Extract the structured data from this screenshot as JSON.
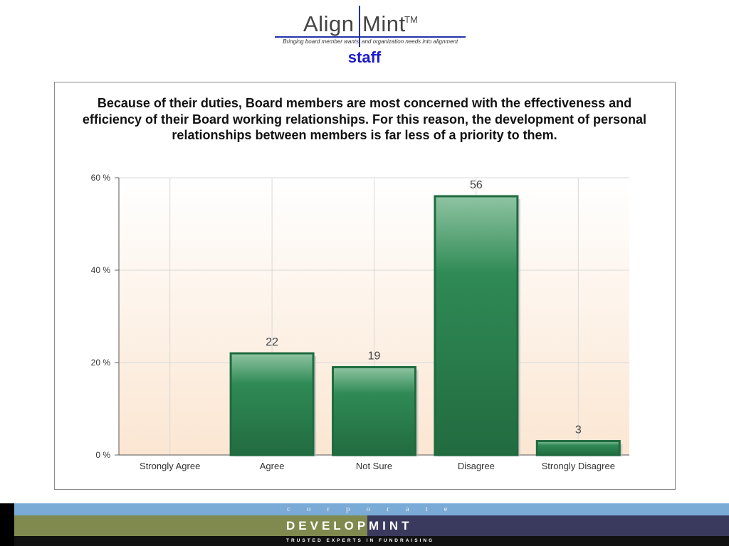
{
  "header": {
    "logo_left": "Align",
    "logo_right": "Mint",
    "logo_tm": "TM",
    "tagline_left": "Bringing board member wants",
    "tagline_right": "and organization needs into alignment",
    "subtitle": "staff"
  },
  "chart_data": {
    "type": "bar",
    "title": "Because of their duties, Board members are most concerned with the effectiveness and efficiency of their Board working relationships.  For this reason, the development of personal relationships between members is far less of a priority to them.",
    "categories": [
      "Strongly Agree",
      "Agree",
      "Not Sure",
      "Disagree",
      "Strongly Disagree"
    ],
    "values": [
      0,
      22,
      19,
      56,
      3
    ],
    "data_labels": [
      "",
      "22",
      "19",
      "56",
      "3"
    ],
    "yticks": [
      0,
      20,
      40,
      60
    ],
    "ytick_labels": [
      "0 %",
      "20 %",
      "40 %",
      "60 %"
    ],
    "ylim": [
      0,
      60
    ],
    "xlabel": "",
    "ylabel": "",
    "grid": true,
    "bar_color": "#2e8b57",
    "bar_border": "#1f6b3f"
  },
  "footer": {
    "corporate": "corporate",
    "develop": "DEVELOP",
    "mint": "MINT",
    "trusted": "TRUSTED EXPERTS IN FUNDRAISING"
  }
}
